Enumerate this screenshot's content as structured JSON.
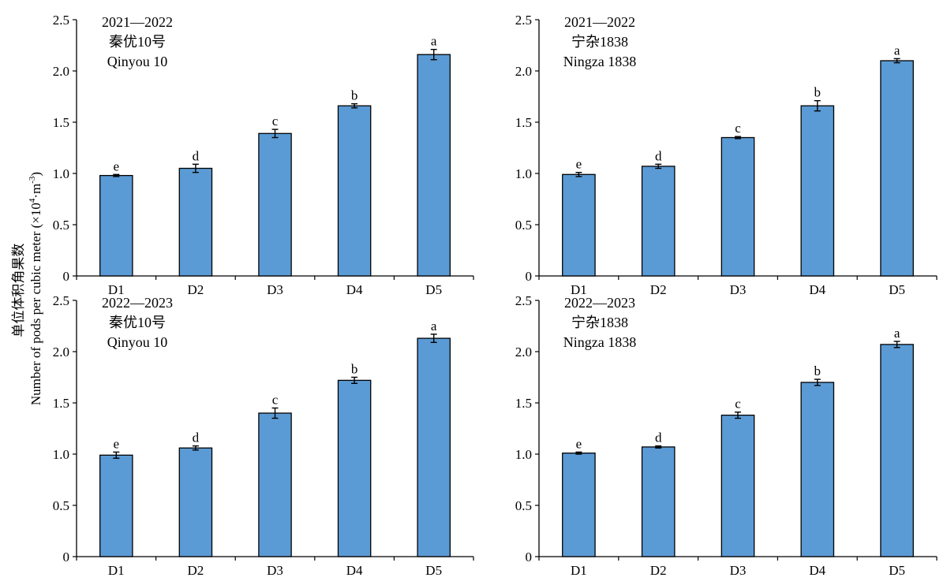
{
  "figure": {
    "ylabel_cn": "单位体积角果数",
    "ylabel_en": "Number of pods per cubic meter (×10",
    "ylabel_sup1": "4",
    "ylabel_mid": "·m",
    "ylabel_sup2": "-3",
    "ylabel_end": ")"
  },
  "colors": {
    "bar": "#5b9bd5",
    "bar_edge": "#000000",
    "axis": "#000000"
  },
  "chart_data": [
    {
      "type": "bar",
      "label_lines": [
        "2021—2022",
        "秦优10号",
        "Qinyou 10"
      ],
      "categories": [
        "D1",
        "D2",
        "D3",
        "D4",
        "D5"
      ],
      "values": [
        0.98,
        1.05,
        1.39,
        1.66,
        2.16
      ],
      "errors": [
        0.01,
        0.04,
        0.04,
        0.02,
        0.05
      ],
      "sig": [
        "e",
        "d",
        "c",
        "b",
        "a"
      ],
      "ylim": [
        0,
        2.5
      ],
      "yticks": [
        "0",
        "0.5",
        "1.0",
        "1.5",
        "2.0",
        "2.5"
      ]
    },
    {
      "type": "bar",
      "label_lines": [
        "2021—2022",
        "宁杂1838",
        "Ningza 1838"
      ],
      "categories": [
        "D1",
        "D2",
        "D3",
        "D4",
        "D5"
      ],
      "values": [
        0.99,
        1.07,
        1.35,
        1.66,
        2.1
      ],
      "errors": [
        0.02,
        0.02,
        0.01,
        0.05,
        0.02
      ],
      "sig": [
        "e",
        "d",
        "c",
        "b",
        "a"
      ],
      "ylim": [
        0,
        2.5
      ],
      "yticks": [
        "0",
        "0.5",
        "1.0",
        "1.5",
        "2.0",
        "2.5"
      ]
    },
    {
      "type": "bar",
      "label_lines": [
        "2022—2023",
        "秦优10号",
        "Qinyou 10"
      ],
      "categories": [
        "D1",
        "D2",
        "D3",
        "D4",
        "D5"
      ],
      "values": [
        0.99,
        1.06,
        1.4,
        1.72,
        2.13
      ],
      "errors": [
        0.03,
        0.02,
        0.05,
        0.03,
        0.04
      ],
      "sig": [
        "e",
        "d",
        "c",
        "b",
        "a"
      ],
      "ylim": [
        0,
        2.5
      ],
      "yticks": [
        "0",
        "0.5",
        "1.0",
        "1.5",
        "2.0",
        "2.5"
      ]
    },
    {
      "type": "bar",
      "label_lines": [
        "2022—2023",
        "宁杂1838",
        "Ningza 1838"
      ],
      "categories": [
        "D1",
        "D2",
        "D3",
        "D4",
        "D5"
      ],
      "values": [
        1.01,
        1.07,
        1.38,
        1.7,
        2.07
      ],
      "errors": [
        0.01,
        0.01,
        0.03,
        0.03,
        0.03
      ],
      "sig": [
        "e",
        "d",
        "c",
        "b",
        "a"
      ],
      "ylim": [
        0,
        2.5
      ],
      "yticks": [
        "0",
        "0.5",
        "1.0",
        "1.5",
        "2.0",
        "2.5"
      ]
    }
  ]
}
